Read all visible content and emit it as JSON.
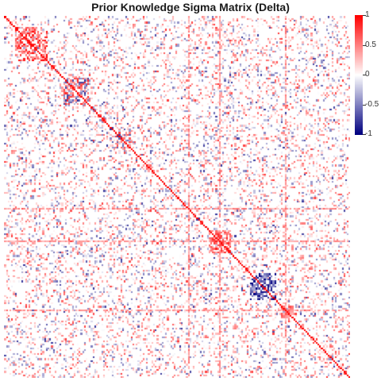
{
  "chart_data": {
    "type": "heatmap",
    "title": "Prior Knowledge Sigma Matrix (Delta)",
    "xlabel": "",
    "ylabel": "",
    "value_range": [
      -1,
      1
    ],
    "colorscale": {
      "low": "#000080",
      "mid": "#ffffff",
      "high": "#ff0000"
    },
    "colorbar_ticks": [
      {
        "value": 1,
        "label": "1"
      },
      {
        "value": 0.5,
        "label": "0.5"
      },
      {
        "value": 0,
        "label": "0"
      },
      {
        "value": -0.5,
        "label": "-0.5"
      },
      {
        "value": -1,
        "label": "-1"
      }
    ],
    "matrix_size": 200,
    "diagonal_value": 1,
    "blocks": [
      {
        "start": 0.03,
        "end": 0.12,
        "sign": "positive",
        "strength": 0.7
      },
      {
        "start": 0.17,
        "end": 0.24,
        "sign": "mixed",
        "strength": 0.6
      },
      {
        "start": 0.32,
        "end": 0.36,
        "sign": "mixed",
        "strength": 0.5
      },
      {
        "start": 0.59,
        "end": 0.65,
        "sign": "positive",
        "strength": 0.6
      },
      {
        "start": 0.71,
        "end": 0.78,
        "sign": "negative",
        "strength": 0.8
      },
      {
        "start": 0.8,
        "end": 0.84,
        "sign": "positive",
        "strength": 0.5
      }
    ],
    "highlight_lines": [
      0.53,
      0.62,
      0.81
    ]
  }
}
